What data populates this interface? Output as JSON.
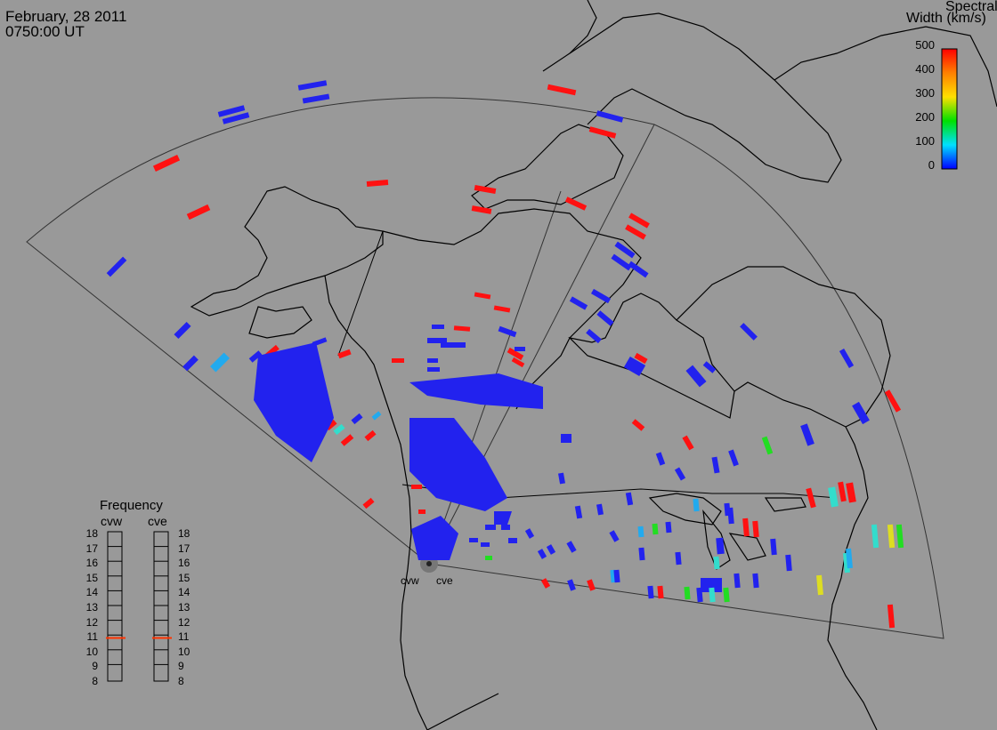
{
  "header": {
    "date": "February, 28 2011",
    "time": "0750:00 UT"
  },
  "colorbar": {
    "title_line1": "Spectral",
    "title_line2": "Width (km/s)",
    "ticks": [
      "500",
      "400",
      "300",
      "200",
      "100",
      "0"
    ],
    "colors": [
      "#ff0000",
      "#ff8000",
      "#ffe000",
      "#00e000",
      "#00e0ff",
      "#0000ff"
    ]
  },
  "frequency_panel": {
    "title": "Frequency",
    "radars": [
      "cvw",
      "cve"
    ],
    "levels": [
      "18",
      "17",
      "16",
      "15",
      "14",
      "13",
      "12",
      "11",
      "10",
      "9",
      "8"
    ],
    "marker_color": "#ff3300",
    "cvw_mhz": 10.8,
    "cve_mhz": 10.8
  },
  "radar_sites": {
    "west_label": "cvw",
    "east_label": "cve"
  },
  "colors": {
    "background": "#999999",
    "coast": "#000000",
    "fov_outline": "#333333",
    "low_width": "#2222ee",
    "high_width": "#ff1111"
  }
}
